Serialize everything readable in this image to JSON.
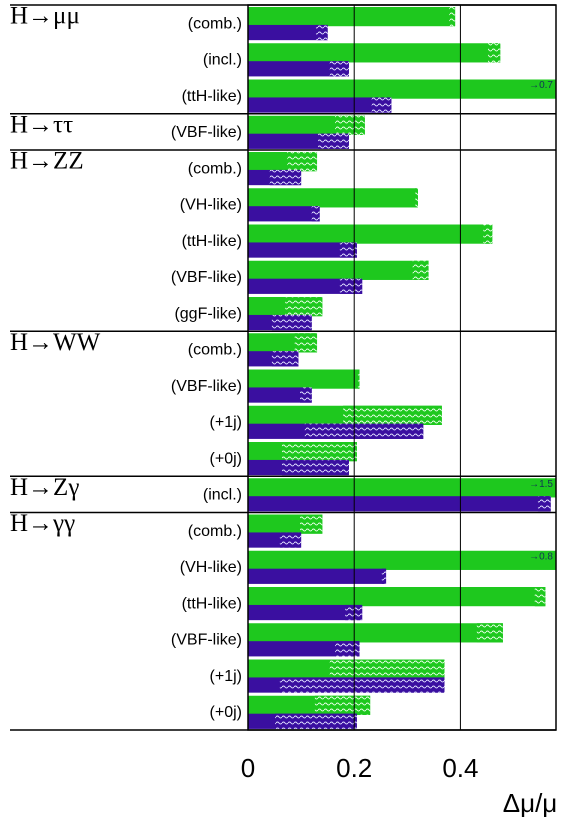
{
  "chart_data": {
    "type": "hbar-pair",
    "x_label": "Δμ/μ",
    "processes": [
      "H→μμ",
      null,
      null,
      "H→ττ",
      "H→ZZ",
      null,
      null,
      null,
      null,
      "H→WW",
      null,
      null,
      null,
      "H→Zγ",
      "H→γγ",
      null,
      null,
      null,
      null,
      null
    ],
    "categories": [
      "(comb.)",
      "(incl.)",
      "(ttH-like)",
      "(VBF-like)",
      "(comb.)",
      "(VH-like)",
      "(ttH-like)",
      "(VBF-like)",
      "(ggF-like)",
      "(comb.)",
      "(VBF-like)",
      "(+1j)",
      "(+0j)",
      "(incl.)",
      "(comb.)",
      "(VH-like)",
      "(ttH-like)",
      "(VBF-like)",
      "(+1j)",
      "(+0j)"
    ],
    "series": [
      {
        "color": "#1ec81e",
        "values": [
          0.39,
          0.475,
          0.7,
          0.22,
          0.13,
          0.32,
          0.46,
          0.34,
          0.14,
          0.13,
          0.21,
          0.365,
          0.205,
          1.5,
          0.14,
          0.8,
          0.56,
          0.48,
          0.37,
          0.23
        ],
        "value_labels": [
          null,
          null,
          "→0.7",
          null,
          null,
          null,
          null,
          null,
          null,
          null,
          null,
          null,
          null,
          "→1.5",
          null,
          "→0.8",
          null,
          null,
          null,
          null
        ],
        "hatch_from": [
          0.379,
          0.452,
          null,
          0.164,
          0.074,
          0.315,
          0.443,
          0.31,
          0.07,
          0.088,
          0.207,
          0.179,
          0.064,
          null,
          0.098,
          null,
          0.54,
          0.431,
          0.154,
          0.126
        ]
      },
      {
        "color": "#3a0fa0",
        "values": [
          0.15,
          0.19,
          0.27,
          0.19,
          0.1,
          0.135,
          0.205,
          0.215,
          0.12,
          0.095,
          0.12,
          0.33,
          0.19,
          0.57,
          0.1,
          0.26,
          0.215,
          0.21,
          0.37,
          0.205
        ],
        "hatch_from": [
          0.128,
          0.154,
          0.233,
          0.132,
          0.041,
          0.12,
          0.173,
          0.173,
          0.045,
          0.045,
          0.098,
          0.107,
          0.064,
          0.546,
          0.06,
          0.252,
          0.183,
          0.164,
          0.06,
          0.051
        ]
      }
    ],
    "xlim": [
      0,
      0.58
    ],
    "xticks": [
      0,
      0.2,
      0.4
    ],
    "grid": true
  }
}
